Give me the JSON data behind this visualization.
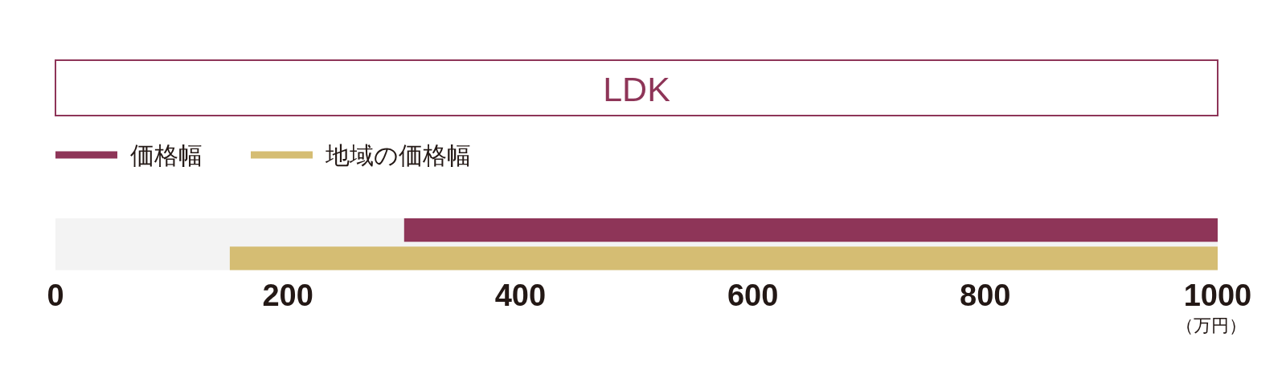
{
  "chart_data": {
    "type": "bar",
    "orientation": "horizontal",
    "title": "LDK",
    "xlabel": "（万円）",
    "legend": "top left",
    "categories": [
      null
    ],
    "series": [
      {
        "name": "価格幅",
        "color": "#8e3558",
        "values": [
          700
        ],
        "base": [
          300
        ]
      },
      {
        "name": "地域の価格幅",
        "color": "#d5bd73",
        "values": [
          850
        ],
        "base": [
          150
        ]
      }
    ],
    "xlim": [
      0,
      1000
    ],
    "xticks": [
      0,
      200,
      400,
      600,
      800,
      1000
    ],
    "bands": [
      {
        "axis": "x",
        "from": 0,
        "to": 1000,
        "color": "#f3f3f3"
      }
    ]
  }
}
